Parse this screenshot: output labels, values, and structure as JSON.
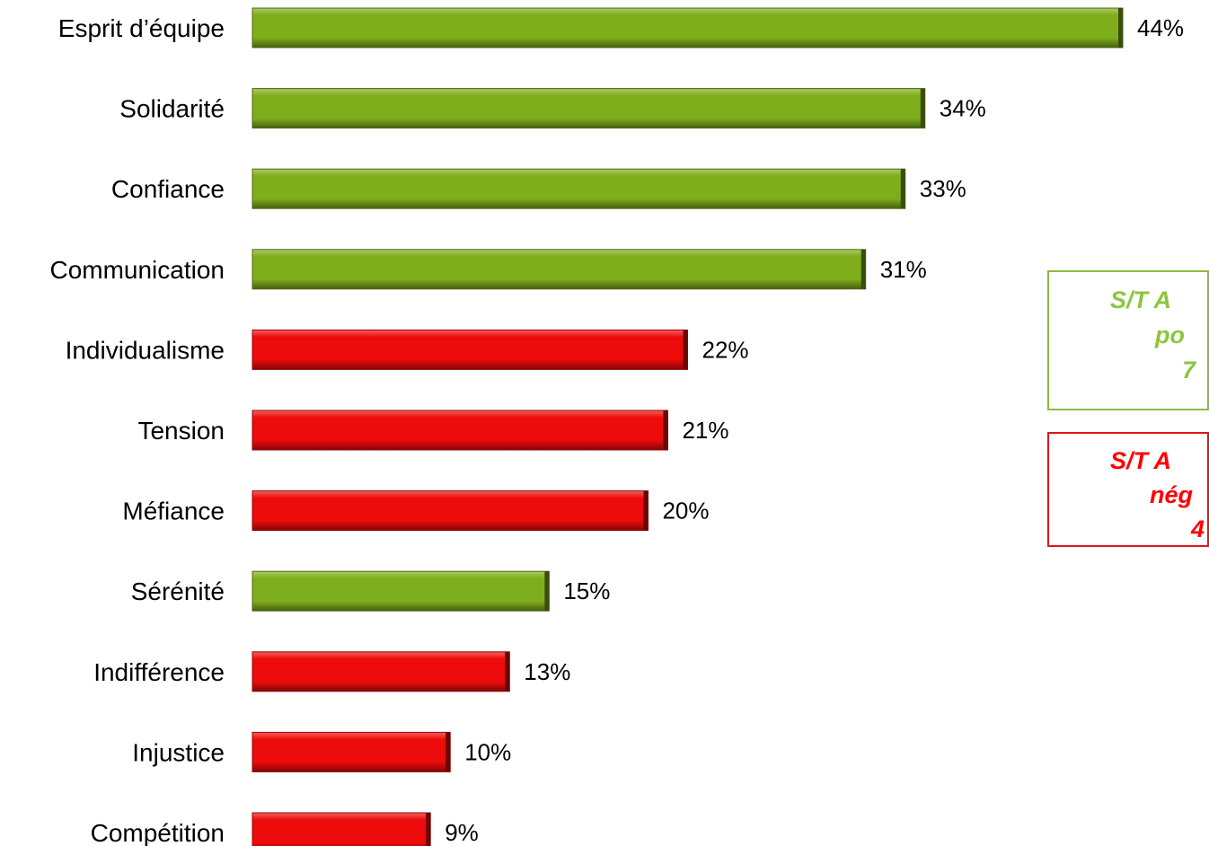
{
  "chart_data": {
    "type": "bar",
    "orientation": "horizontal",
    "categories": [
      "Esprit d’équipe",
      "Solidarité",
      "Confiance",
      "Communication",
      "Individualisme",
      "Tension",
      "Méfiance",
      "Sérénité",
      "Indifférence",
      "Injustice",
      "Compétition"
    ],
    "values": [
      44,
      34,
      33,
      31,
      22,
      21,
      20,
      15,
      13,
      10,
      9
    ],
    "value_labels": [
      "44%",
      "34%",
      "33%",
      "31%",
      "22%",
      "21%",
      "20%",
      "15%",
      "13%",
      "10%",
      "9%"
    ],
    "polarity": [
      "positive",
      "positive",
      "positive",
      "positive",
      "negative",
      "negative",
      "negative",
      "positive",
      "negative",
      "negative",
      "negative"
    ],
    "unit": "%",
    "xlim": [
      0,
      44
    ],
    "grid": false,
    "legend": "right"
  },
  "colors": {
    "positive": "#7fae1c",
    "negative": "#ee0b0b",
    "positive_text": "#8cc63f",
    "negative_text": "#ff0000"
  },
  "legend": {
    "positive": {
      "line1": "S/T A",
      "line2": "po",
      "line3": "7"
    },
    "negative": {
      "line1": "S/T A",
      "line2": "nég",
      "line3": "4"
    }
  }
}
